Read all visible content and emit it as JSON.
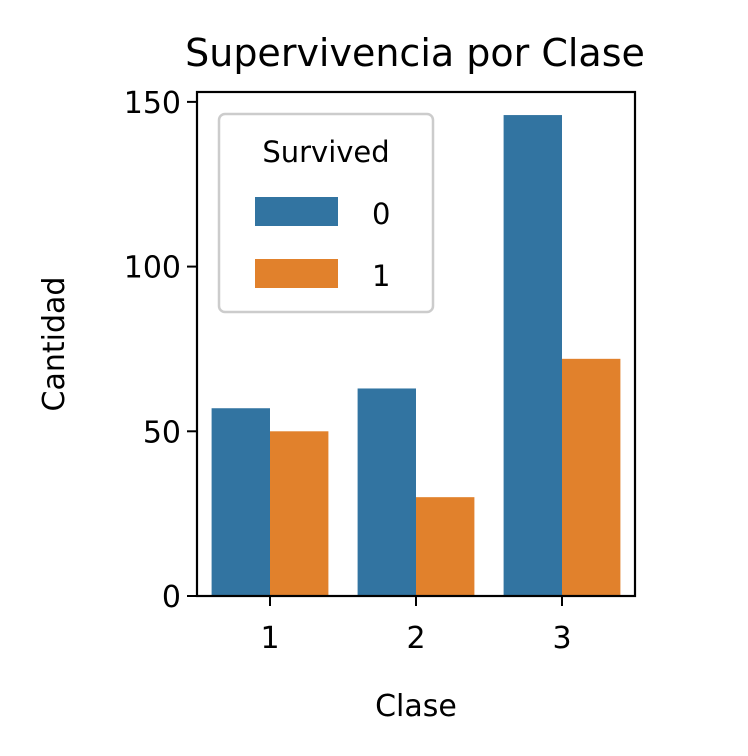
{
  "chart_data": {
    "type": "bar",
    "title": "Supervivencia por Clase",
    "xlabel": "Clase",
    "ylabel": "Cantidad",
    "categories": [
      "1",
      "2",
      "3"
    ],
    "ylim": [
      0,
      153
    ],
    "yticks": [
      "0",
      "50",
      "100",
      "150"
    ],
    "legend": {
      "title": "Survived",
      "placement": "upper-left"
    },
    "series": [
      {
        "name": "0",
        "color": "#3274a1",
        "values": [
          57,
          63,
          146
        ]
      },
      {
        "name": "1",
        "color": "#e1812c",
        "values": [
          50,
          30,
          72
        ]
      }
    ]
  }
}
